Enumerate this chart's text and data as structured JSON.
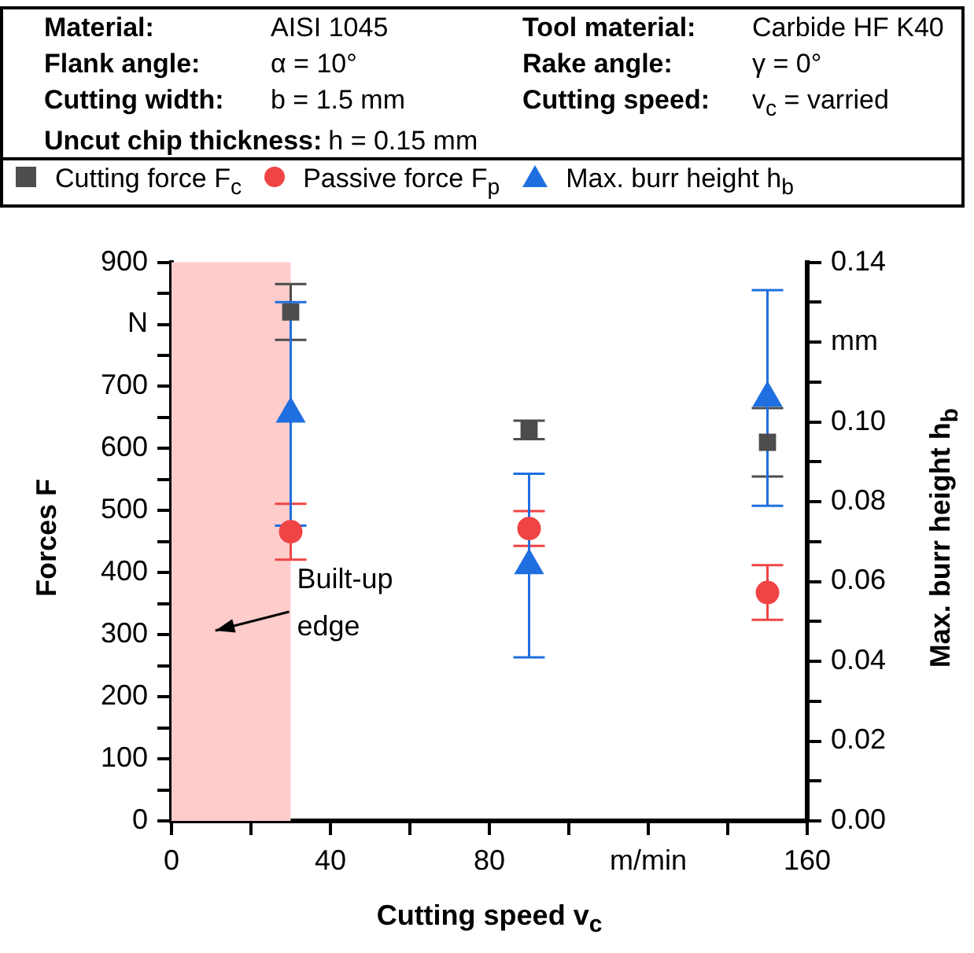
{
  "chart_data": {
    "type": "scatter",
    "annotations": [
      "Material:",
      "AISI 1045",
      "Tool material:",
      "Carbide HF K40",
      "Flank angle:",
      "α = 10°",
      "Rake angle:",
      "γ = 0°",
      "Cutting width:",
      "b = 1.5 mm",
      "Cutting speed:",
      "v$_{c}$ = varried",
      "Uncut chip thickness:",
      "h = 0.15 mm"
    ],
    "xlabel": "Cutting speed v$_{c}$",
    "ylabel": "Forces F",
    "y2label": "Max. burr height h$_{b}$",
    "x": [
      30,
      90,
      150
    ],
    "series": [
      {
        "name": "Cutting force F$_{c}$",
        "color": "#4d4d4d",
        "marker": "square",
        "values": [
          820,
          630,
          610
        ],
        "errors": [
          45,
          15,
          55
        ]
      },
      {
        "name": "Passive force F$_{p}$",
        "color": "#f04444",
        "marker": "circle",
        "values": [
          466,
          471,
          368
        ],
        "errors": [
          45,
          28,
          44
        ]
      },
      {
        "name": "Max. burr height h$_{b}$",
        "color": "#1f6fe0",
        "marker": "triangle",
        "axis": "y2",
        "values": [
          0.102,
          0.064,
          0.106
        ],
        "errors": [
          0.028,
          0.023,
          0.027
        ]
      }
    ],
    "xlim": [
      0,
      160
    ],
    "xticks": [
      0,
      {
        "value": 20,
        "label": null
      },
      40,
      {
        "value": 60,
        "label": null
      },
      80,
      {
        "value": 100,
        "label": null
      },
      {
        "value": 120,
        "label": "m/min"
      },
      {
        "value": 140,
        "label": null
      },
      160
    ],
    "ylim": [
      0,
      900
    ],
    "yticks": [
      0,
      {
        "value": 50,
        "label": null
      },
      100,
      {
        "value": 150,
        "label": null
      },
      200,
      {
        "value": 250,
        "label": null
      },
      300,
      {
        "value": 350,
        "label": null
      },
      400,
      {
        "value": 450,
        "label": null
      },
      500,
      {
        "value": 550,
        "label": null
      },
      600,
      {
        "value": 650,
        "label": null
      },
      700,
      {
        "value": 750,
        "label": null
      },
      {
        "value": 800,
        "label": "N"
      },
      {
        "value": 850,
        "label": null
      },
      900
    ],
    "y2lim": [
      0,
      0.14
    ],
    "y2ticks": [
      {
        "value": 0,
        "label": "0.00"
      },
      {
        "value": 0.01,
        "label": null
      },
      {
        "value": 0.02,
        "label": "0.02"
      },
      {
        "value": 0.03,
        "label": null
      },
      {
        "value": 0.04,
        "label": "0.04"
      },
      {
        "value": 0.05,
        "label": null
      },
      {
        "value": 0.06,
        "label": "0.06"
      },
      {
        "value": 0.07,
        "label": null
      },
      {
        "value": 0.08,
        "label": "0.08"
      },
      {
        "value": 0.09,
        "label": null
      },
      {
        "value": 0.1,
        "label": "0.10"
      },
      {
        "value": 0.11,
        "label": null
      },
      {
        "value": 0.12,
        "label": "mm"
      },
      {
        "value": 0.13,
        "label": null
      },
      {
        "value": 0.14,
        "label": "0.14"
      }
    ],
    "bands": [
      {
        "axis": "x",
        "from": 0,
        "to": 30,
        "color": "#ffcccc",
        "label": "Built-up edge"
      }
    ],
    "grid": false,
    "legend": "top"
  }
}
